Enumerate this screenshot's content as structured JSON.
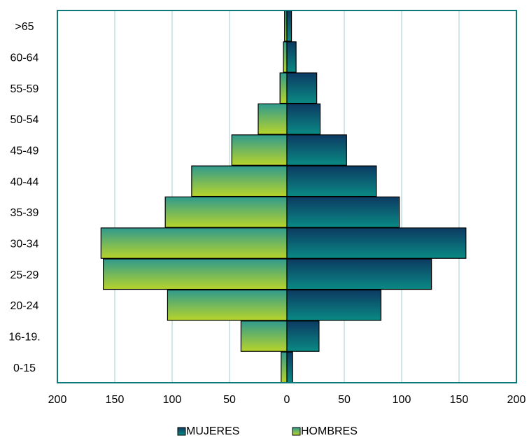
{
  "chart_data": {
    "type": "bar",
    "orientation": "horizontal",
    "subtype": "population-pyramid",
    "categories": [
      "0-15",
      "16-19.",
      "20-24",
      "25-29",
      "30-34",
      "35-39",
      "40-44",
      "45-49",
      "50-54",
      "55-59",
      "60-64",
      ">65"
    ],
    "series": [
      {
        "name": "MUJERES",
        "side": "right",
        "values": [
          5,
          28,
          82,
          126,
          156,
          98,
          78,
          52,
          29,
          26,
          8,
          4
        ],
        "color_top": "#0c3a62",
        "color_bottom": "#0a8a84"
      },
      {
        "name": "HOMBRES",
        "side": "left",
        "values": [
          5,
          40,
          104,
          160,
          162,
          106,
          83,
          48,
          25,
          6,
          3,
          2
        ],
        "color_top": "#2f9a8e",
        "color_bottom": "#b8d42a"
      }
    ],
    "xlim": [
      -200,
      200
    ],
    "x_ticks": [
      "200",
      "150",
      "100",
      "50",
      "0",
      "50",
      "100",
      "150",
      "200"
    ],
    "grid": "vertical",
    "legend_position": "bottom",
    "frame_color": "#0e7a7e"
  }
}
